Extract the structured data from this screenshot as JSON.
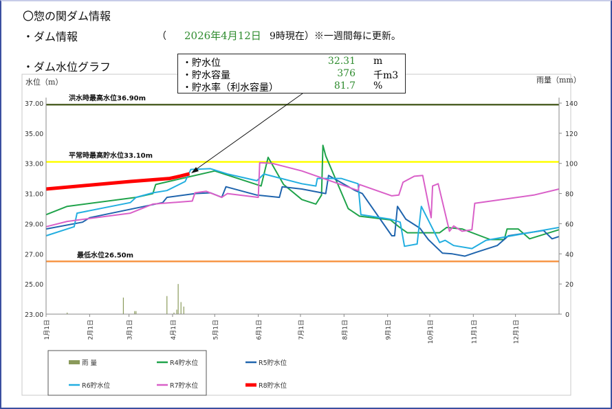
{
  "header": {
    "title": "〇惣の関ダム情報",
    "dam_info_label": "・ダム情報",
    "paren_open": "（",
    "date": "2026年4月12日",
    "as_of": "9時現在）※一週間毎に更新。",
    "graph_label": "・ダム水位グラフ"
  },
  "info_box": {
    "rows": [
      {
        "label": "・貯水位",
        "value": "32.31",
        "unit": "m"
      },
      {
        "label": "・貯水容量",
        "value": "376",
        "unit": "千m3"
      },
      {
        "label": "・貯水率（利水容量）",
        "value": "81.7",
        "unit": "%"
      }
    ]
  },
  "chart_data": {
    "type": "line",
    "ylabel": "水位（m）",
    "y2label": "雨量（mm）",
    "ylim": [
      23,
      37
    ],
    "y2lim": [
      0,
      140
    ],
    "yticks": [
      "37.00",
      "35.00",
      "33.00",
      "31.00",
      "29.00",
      "27.00",
      "25.00",
      "23.00"
    ],
    "y2ticks": [
      "140",
      "120",
      "100",
      "80",
      "60",
      "40",
      "20",
      "0"
    ],
    "xticks": [
      "1月1日",
      "2月1日",
      "3月1日",
      "4月1日",
      "5月1日",
      "6月1日",
      "7月1日",
      "8月1日",
      "9月1日",
      "10月1日",
      "11月1日",
      "12月1日"
    ],
    "xtick_days": [
      0,
      31,
      59,
      90,
      120,
      151,
      181,
      212,
      243,
      273,
      304,
      334
    ],
    "x_unit": "day of year",
    "reference_lines": [
      {
        "label": "洪水時最高水位36.90m",
        "value": 36.9,
        "color": "#4f6228"
      },
      {
        "label": "平常時最高貯水位33.10m",
        "value": 33.1,
        "color": "#ffff00"
      },
      {
        "label": "最低水位26.50m",
        "value": 26.5,
        "color": "#f79646"
      }
    ],
    "rain": {
      "name": "雨 量",
      "color": "#8a9a5b",
      "points": [
        [
          15,
          1
        ],
        [
          55,
          11
        ],
        [
          63,
          2
        ],
        [
          64,
          2
        ],
        [
          86,
          12
        ],
        [
          91,
          1
        ],
        [
          93,
          3
        ],
        [
          94,
          20
        ],
        [
          96,
          8
        ],
        [
          98,
          5
        ]
      ]
    },
    "series": [
      {
        "name": "R4貯水位",
        "color": "#1fa34a",
        "width": 2,
        "points": [
          [
            0,
            29.6
          ],
          [
            15,
            30.15
          ],
          [
            64,
            30.75
          ],
          [
            76,
            31.0
          ],
          [
            78,
            31.6
          ],
          [
            99,
            32.05
          ],
          [
            120,
            32.5
          ],
          [
            153,
            31.5
          ],
          [
            158,
            33.4
          ],
          [
            169,
            31.6
          ],
          [
            182,
            30.6
          ],
          [
            192,
            30.3
          ],
          [
            196,
            30.9
          ],
          [
            197,
            34.2
          ],
          [
            199,
            33.5
          ],
          [
            215,
            30.0
          ],
          [
            223,
            29.5
          ],
          [
            245,
            29.25
          ],
          [
            251,
            28.8
          ],
          [
            257,
            28.4
          ],
          [
            280,
            28.4
          ],
          [
            285,
            28.75
          ],
          [
            296,
            28.65
          ],
          [
            316,
            27.95
          ],
          [
            326,
            27.95
          ],
          [
            328,
            28.65
          ],
          [
            336,
            28.65
          ],
          [
            344,
            28.0
          ],
          [
            365,
            28.6
          ]
        ]
      },
      {
        "name": "R5貯水位",
        "color": "#1f64ad",
        "width": 2,
        "points": [
          [
            0,
            28.65
          ],
          [
            26,
            29.1
          ],
          [
            31,
            29.4
          ],
          [
            83,
            30.4
          ],
          [
            86,
            30.75
          ],
          [
            106,
            31.0
          ],
          [
            117,
            31.05
          ],
          [
            125,
            30.75
          ],
          [
            128,
            31.45
          ],
          [
            150,
            30.9
          ],
          [
            166,
            30.75
          ],
          [
            168,
            31.45
          ],
          [
            182,
            31.3
          ],
          [
            199,
            31.0
          ],
          [
            201,
            32.2
          ],
          [
            220,
            31.2
          ],
          [
            225,
            31.0
          ],
          [
            246,
            28.2
          ],
          [
            248,
            28.2
          ],
          [
            250,
            30.15
          ],
          [
            256,
            29.3
          ],
          [
            266,
            28.7
          ],
          [
            272,
            27.95
          ],
          [
            282,
            27.05
          ],
          [
            289,
            27.0
          ],
          [
            298,
            26.85
          ],
          [
            306,
            27.1
          ],
          [
            321,
            27.55
          ],
          [
            329,
            28.2
          ],
          [
            354,
            28.55
          ],
          [
            360,
            28.0
          ],
          [
            365,
            28.15
          ]
        ]
      },
      {
        "name": "R6貯水位",
        "color": "#22aee0",
        "width": 2,
        "points": [
          [
            0,
            28.2
          ],
          [
            20,
            28.8
          ],
          [
            22,
            29.7
          ],
          [
            60,
            30.4
          ],
          [
            64,
            30.75
          ],
          [
            76,
            31.05
          ],
          [
            86,
            31.2
          ],
          [
            99,
            31.8
          ],
          [
            103,
            32.6
          ],
          [
            117,
            32.65
          ],
          [
            129,
            32.3
          ],
          [
            150,
            31.85
          ],
          [
            155,
            32.3
          ],
          [
            182,
            31.65
          ],
          [
            192,
            31.5
          ],
          [
            193,
            32.0
          ],
          [
            210,
            32.0
          ],
          [
            222,
            31.65
          ],
          [
            224,
            29.6
          ],
          [
            245,
            29.3
          ],
          [
            252,
            29.1
          ],
          [
            255,
            27.5
          ],
          [
            264,
            27.65
          ],
          [
            267,
            30.15
          ],
          [
            280,
            27.75
          ],
          [
            284,
            27.9
          ],
          [
            290,
            27.55
          ],
          [
            303,
            27.35
          ],
          [
            313,
            27.9
          ],
          [
            365,
            28.75
          ]
        ]
      },
      {
        "name": "R7貯水位",
        "color": "#d95fc8",
        "width": 2,
        "points": [
          [
            0,
            28.8
          ],
          [
            15,
            29.15
          ],
          [
            60,
            29.7
          ],
          [
            76,
            30.3
          ],
          [
            104,
            30.5
          ],
          [
            106,
            31.05
          ],
          [
            114,
            31.15
          ],
          [
            125,
            30.75
          ],
          [
            129,
            31.0
          ],
          [
            151,
            30.75
          ],
          [
            152,
            33.05
          ],
          [
            161,
            33.0
          ],
          [
            182,
            32.5
          ],
          [
            222,
            31.2
          ],
          [
            223,
            31.6
          ],
          [
            246,
            30.85
          ],
          [
            251,
            30.9
          ],
          [
            254,
            31.75
          ],
          [
            262,
            32.15
          ],
          [
            268,
            32.2
          ],
          [
            274,
            29.4
          ],
          [
            275,
            31.5
          ],
          [
            279,
            31.65
          ],
          [
            287,
            28.5
          ],
          [
            290,
            28.85
          ],
          [
            296,
            28.5
          ],
          [
            303,
            28.6
          ],
          [
            305,
            30.35
          ],
          [
            347,
            30.9
          ],
          [
            365,
            31.3
          ]
        ]
      },
      {
        "name": "R8貯水位",
        "color": "#ff0000",
        "width": 5,
        "points": [
          [
            0,
            31.3
          ],
          [
            30,
            31.55
          ],
          [
            60,
            31.8
          ],
          [
            88,
            32.0
          ],
          [
            95,
            32.15
          ],
          [
            102,
            32.31
          ]
        ]
      }
    ],
    "legend_position": "bottom-left",
    "grid": false
  }
}
